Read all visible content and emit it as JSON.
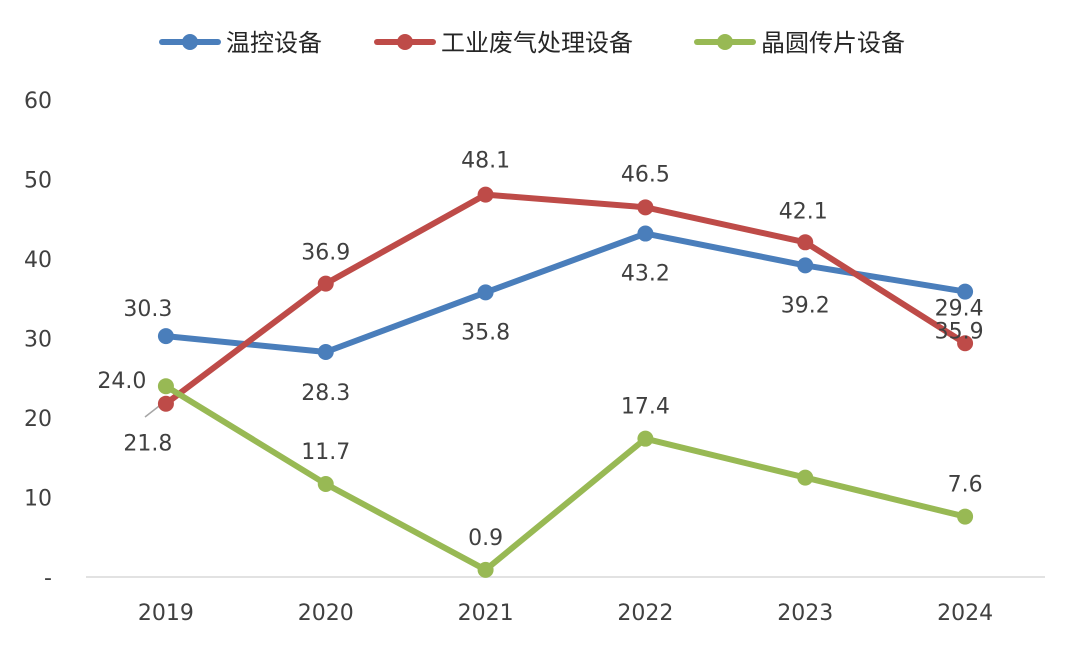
{
  "chart_data": {
    "type": "line",
    "categories": [
      "2019",
      "2020",
      "2021",
      "2022",
      "2023",
      "2024"
    ],
    "y_ticks": [
      "-",
      "10",
      "20",
      "30",
      "40",
      "50",
      "60"
    ],
    "ylim": [
      0,
      60
    ],
    "grid": false,
    "legend_position": "top",
    "series": [
      {
        "name": "温控设备",
        "color": "#4a7ebb",
        "values": [
          30.3,
          28.3,
          35.8,
          43.2,
          39.2,
          35.9
        ],
        "labels": [
          "30.3",
          "28.3",
          "35.8",
          "43.2",
          "39.2",
          "35.9"
        ]
      },
      {
        "name": "工业废气处理设备",
        "color": "#be4b48",
        "values": [
          21.8,
          36.9,
          48.1,
          46.5,
          42.1,
          29.4
        ],
        "labels": [
          "21.8",
          "36.9",
          "48.1",
          "46.5",
          "42.1",
          "29.4"
        ]
      },
      {
        "name": "晶圆传片设备",
        "color": "#98b954",
        "values": [
          24.0,
          11.7,
          0.9,
          17.4,
          12.5,
          7.6
        ],
        "labels": [
          "24.0",
          "11.7",
          "0.9",
          "17.4",
          "",
          "7.6"
        ]
      }
    ]
  }
}
